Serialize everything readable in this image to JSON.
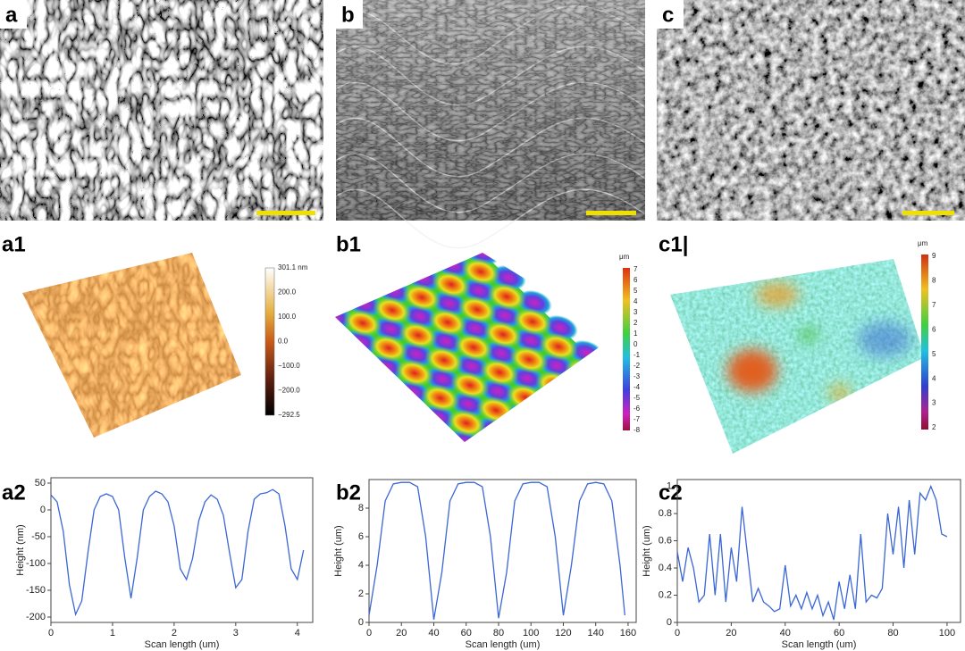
{
  "panels": [
    {
      "label": "a"
    },
    {
      "label": "b"
    },
    {
      "label": "c"
    },
    {
      "label": "a1",
      "colorbar": {
        "ticks": [
          "301.1 nm",
          "200.0",
          "100.0",
          "0.0",
          "−100.0",
          "−200.0",
          "−292.5"
        ]
      }
    },
    {
      "label": "b1",
      "colorbar": {
        "unit": "μm",
        "ticks": [
          7,
          6,
          5,
          4,
          3,
          2,
          1,
          0,
          -1,
          -2,
          -3,
          -4,
          -5,
          -6,
          -7,
          -8
        ]
      }
    },
    {
      "label": "c1|",
      "colorbar": {
        "unit": "μm",
        "ticks": [
          9,
          8,
          7,
          6,
          5,
          4,
          3,
          2
        ]
      }
    }
  ],
  "chart_data": [
    {
      "type": "line",
      "label": "a2",
      "xlabel": "Scan length (um)",
      "ylabel": "Height (nm)",
      "color": "#3a66d6",
      "x": [
        0,
        0.1,
        0.2,
        0.3,
        0.4,
        0.5,
        0.6,
        0.7,
        0.8,
        0.9,
        1.0,
        1.1,
        1.2,
        1.3,
        1.4,
        1.5,
        1.6,
        1.7,
        1.8,
        1.9,
        2.0,
        2.1,
        2.2,
        2.3,
        2.4,
        2.5,
        2.6,
        2.7,
        2.8,
        2.9,
        3.0,
        3.1,
        3.2,
        3.3,
        3.4,
        3.5,
        3.6,
        3.7,
        3.8,
        3.9,
        4.0,
        4.1
      ],
      "values": [
        28,
        15,
        -40,
        -140,
        -195,
        -170,
        -80,
        0,
        25,
        30,
        25,
        0,
        -90,
        -165,
        -90,
        0,
        25,
        35,
        30,
        15,
        -30,
        -110,
        -130,
        -90,
        -20,
        15,
        28,
        20,
        -10,
        -80,
        -145,
        -130,
        -40,
        20,
        30,
        32,
        38,
        30,
        -30,
        -110,
        -130,
        -75
      ],
      "xlim": [
        0,
        4.25
      ],
      "ylim": [
        -210,
        60
      ],
      "xticks": [
        0,
        1,
        2,
        3,
        4
      ],
      "yticks": [
        50,
        0,
        -50,
        -100,
        -150,
        -200
      ]
    },
    {
      "type": "line",
      "label": "b2",
      "xlabel": "Scan length (um)",
      "ylabel": "Height (um)",
      "color": "#3a66d6",
      "x": [
        0,
        5,
        10,
        15,
        20,
        25,
        30,
        35,
        40,
        45,
        50,
        55,
        60,
        65,
        70,
        75,
        80,
        85,
        90,
        95,
        100,
        105,
        110,
        115,
        120,
        125,
        130,
        135,
        140,
        145,
        150,
        155,
        158
      ],
      "values": [
        0.5,
        4,
        8.5,
        9.7,
        9.8,
        9.8,
        9.5,
        6,
        0.2,
        3.5,
        8.5,
        9.7,
        9.8,
        9.8,
        9.5,
        6,
        0.3,
        3.5,
        8.5,
        9.7,
        9.8,
        9.8,
        9.5,
        6,
        0.5,
        4,
        8.5,
        9.7,
        9.8,
        9.7,
        8.5,
        4,
        0.5
      ],
      "xlim": [
        0,
        165
      ],
      "ylim": [
        0,
        10
      ],
      "xticks": [
        0,
        20,
        40,
        60,
        80,
        100,
        120,
        140,
        160
      ],
      "yticks": [
        0,
        2,
        4,
        6,
        8
      ]
    },
    {
      "type": "line",
      "label": "c2",
      "xlabel": "Scan length (um)",
      "ylabel": "Height (um)",
      "color": "#3a66d6",
      "x": [
        0,
        2,
        4,
        6,
        8,
        10,
        12,
        14,
        16,
        18,
        20,
        22,
        24,
        26,
        28,
        30,
        32,
        34,
        36,
        38,
        40,
        42,
        44,
        46,
        48,
        50,
        52,
        54,
        56,
        58,
        60,
        62,
        64,
        66,
        68,
        70,
        72,
        74,
        76,
        78,
        80,
        82,
        84,
        86,
        88,
        90,
        92,
        94,
        96,
        98,
        100
      ],
      "values": [
        0.52,
        0.3,
        0.55,
        0.4,
        0.15,
        0.2,
        0.65,
        0.2,
        0.65,
        0.15,
        0.55,
        0.3,
        0.85,
        0.5,
        0.15,
        0.25,
        0.15,
        0.12,
        0.08,
        0.1,
        0.42,
        0.12,
        0.2,
        0.1,
        0.22,
        0.1,
        0.2,
        0.05,
        0.15,
        0.02,
        0.3,
        0.1,
        0.35,
        0.1,
        0.65,
        0.15,
        0.2,
        0.18,
        0.25,
        0.8,
        0.5,
        0.85,
        0.4,
        0.9,
        0.5,
        0.95,
        0.9,
        1.0,
        0.9,
        0.65,
        0.63
      ],
      "xlim": [
        0,
        105
      ],
      "ylim": [
        0,
        1.05
      ],
      "xticks": [
        0,
        20,
        40,
        60,
        80,
        100
      ],
      "yticks": [
        0,
        0.2,
        0.4,
        0.6,
        0.8,
        1
      ]
    }
  ]
}
